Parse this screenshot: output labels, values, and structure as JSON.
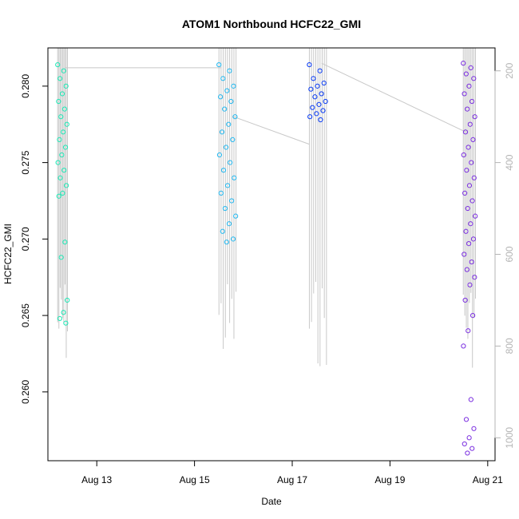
{
  "chart_data": {
    "type": "scatter",
    "title": "ATOM1 Northbound HCFC22_GMI",
    "xlabel": "Date",
    "ylabel": "HCFC22_GMI",
    "x_ticks": [
      "Aug 13",
      "Aug 15",
      "Aug 17",
      "Aug 19",
      "Aug 21"
    ],
    "x_tick_days": [
      13,
      15,
      17,
      19,
      21
    ],
    "xlim": [
      12.0,
      21.15
    ],
    "ylim": [
      0.2555,
      0.2825
    ],
    "y_ticks": [
      0.26,
      0.265,
      0.27,
      0.275,
      0.28
    ],
    "y_tick_labels": [
      "0.260",
      "0.265",
      "0.270",
      "0.275",
      "0.280"
    ],
    "alt_axis_ticks": [
      200,
      400,
      600,
      800,
      1000
    ],
    "alt_axis_range": [
      1050,
      150
    ],
    "alt_axis_color": "#b4b4b4",
    "profile_line_color": "#c8c8c8",
    "segments": [
      {
        "day_range": [
          12.2,
          12.4
        ],
        "color": "#1de9b6",
        "y_values": [
          0.2814,
          0.281,
          0.2805,
          0.28,
          0.2795,
          0.279,
          0.2785,
          0.278,
          0.2775,
          0.277,
          0.2765,
          0.276,
          0.2755,
          0.275,
          0.2745,
          0.274,
          0.2735,
          0.273,
          0.2728,
          0.2698,
          0.2688,
          0.266,
          0.2652,
          0.2648,
          0.2645
        ]
      },
      {
        "day_range": [
          15.5,
          15.85
        ],
        "color": "#22b8f0",
        "y_values": [
          0.2814,
          0.281,
          0.2805,
          0.28,
          0.2797,
          0.2793,
          0.279,
          0.2785,
          0.278,
          0.2775,
          0.277,
          0.2765,
          0.276,
          0.2755,
          0.275,
          0.2745,
          0.274,
          0.2735,
          0.273,
          0.2725,
          0.272,
          0.2715,
          0.271,
          0.2705,
          0.27,
          0.2698
        ]
      },
      {
        "day_range": [
          17.35,
          17.7
        ],
        "color": "#0a3cf5",
        "y_values": [
          0.2814,
          0.281,
          0.2805,
          0.2802,
          0.28,
          0.2798,
          0.2795,
          0.2793,
          0.279,
          0.2788,
          0.2786,
          0.2784,
          0.2782,
          0.278,
          0.2778
        ]
      },
      {
        "day_range": [
          20.5,
          20.75
        ],
        "color": "#7b2fe0",
        "y_values": [
          0.2815,
          0.2812,
          0.2808,
          0.2805,
          0.28,
          0.2795,
          0.279,
          0.2785,
          0.278,
          0.2775,
          0.277,
          0.2765,
          0.276,
          0.2755,
          0.275,
          0.2745,
          0.274,
          0.2735,
          0.273,
          0.2725,
          0.272,
          0.2715,
          0.271,
          0.2705,
          0.27,
          0.2697,
          0.269,
          0.2685,
          0.268,
          0.2675,
          0.267,
          0.266,
          0.265,
          0.264,
          0.263,
          0.2595,
          0.2582,
          0.2576,
          0.257,
          0.2566,
          0.2563,
          0.256
        ]
      }
    ],
    "connectors": [
      {
        "from": [
          12.35,
          0.2812
        ],
        "to": [
          15.55,
          0.2812
        ]
      },
      {
        "from": [
          15.8,
          0.278
        ],
        "to": [
          17.35,
          0.2762
        ]
      },
      {
        "from": [
          17.6,
          0.2815
        ],
        "to": [
          20.55,
          0.277
        ]
      }
    ],
    "grid": false,
    "legend": "none"
  }
}
